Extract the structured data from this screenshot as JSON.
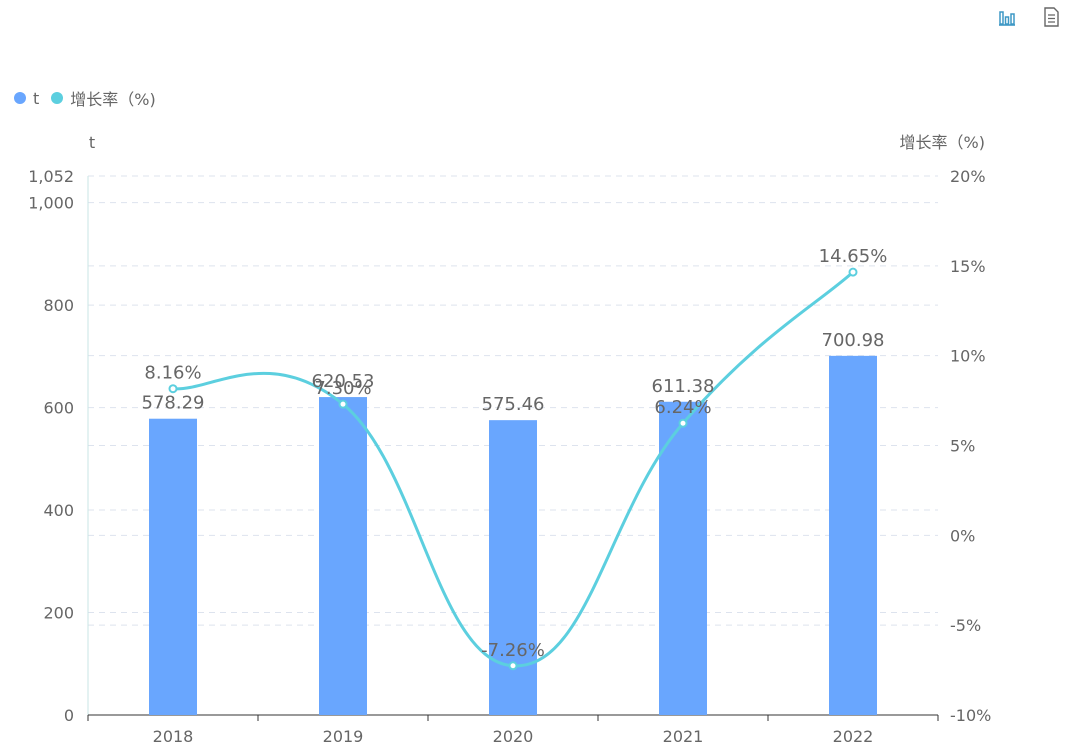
{
  "toolbox": {
    "chart_icon": "bar-chart-icon",
    "data_view_icon": "data-view-icon"
  },
  "legend": [
    {
      "label": "t",
      "color": "#69a6fe"
    },
    {
      "label": "增长率（%)",
      "color": "#5ccfdf"
    }
  ],
  "chart_data": {
    "type": "bar",
    "categories": [
      "2018",
      "2019",
      "2020",
      "2021",
      "2022"
    ],
    "y_left": {
      "label": "t",
      "min": 0,
      "max": 1052,
      "ticks": [
        "0",
        "200",
        "400",
        "600",
        "800",
        "1,000",
        "1,052"
      ],
      "tick_values": [
        0,
        200,
        400,
        600,
        800,
        1000,
        1052
      ]
    },
    "y_right": {
      "label": "增长率（%)",
      "min": -10,
      "max": 20,
      "ticks": [
        "-10%",
        "-5%",
        "0%",
        "5%",
        "10%",
        "15%",
        "20%"
      ],
      "tick_values": [
        -10,
        -5,
        0,
        5,
        10,
        15,
        20
      ]
    },
    "series": [
      {
        "name": "t",
        "type": "bar",
        "axis": "left",
        "color": "#69a6fe",
        "values": [
          578.29,
          620.53,
          575.46,
          611.38,
          700.98
        ],
        "labels": [
          "578.29",
          "620.53",
          "575.46",
          "611.38",
          "700.98"
        ]
      },
      {
        "name": "增长率（%)",
        "type": "line",
        "smooth": true,
        "axis": "right",
        "color": "#5ccfdf",
        "values": [
          8.16,
          7.3,
          -7.26,
          6.24,
          14.65
        ],
        "labels": [
          "8.16%",
          "7.30%",
          "-7.26%",
          "6.24%",
          "14.65%"
        ]
      }
    ],
    "grid": true,
    "legend_position": "top-left"
  }
}
